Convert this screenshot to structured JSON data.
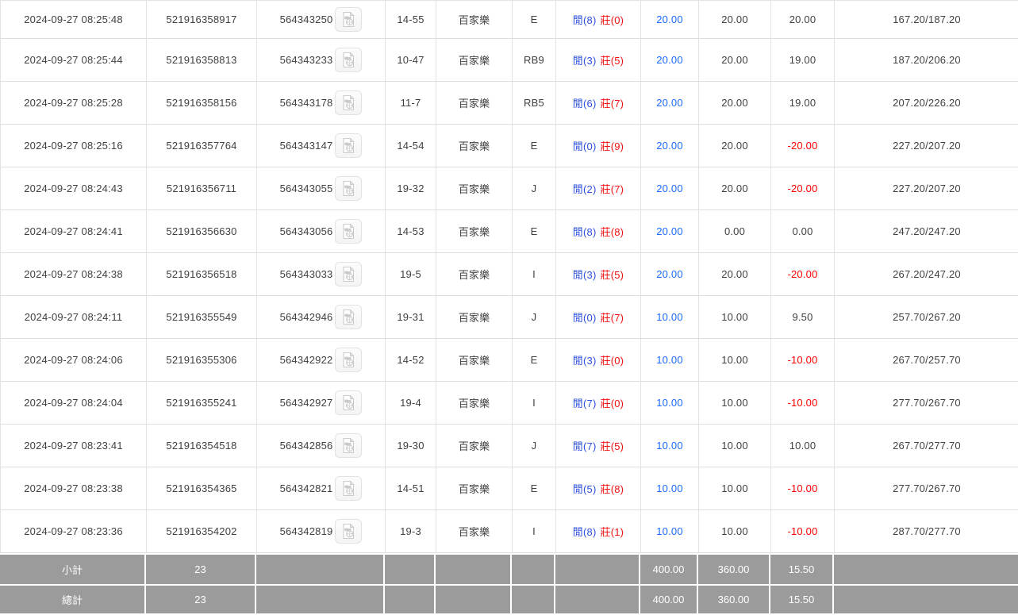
{
  "table": {
    "game_label": "百家樂",
    "rows": [
      {
        "time": "2024-09-27 08:25:48",
        "bet_id": "521916358917",
        "round_id": "564343250",
        "table_round": "14-55",
        "game": "百家樂",
        "code": "E",
        "player": "閒(8)",
        "banker": "莊(0)",
        "bet": "20.00",
        "valid": "20.00",
        "winloss": "20.00",
        "balance": "167.20/187.20"
      },
      {
        "time": "2024-09-27 08:25:44",
        "bet_id": "521916358813",
        "round_id": "564343233",
        "table_round": "10-47",
        "game": "百家樂",
        "code": "RB9",
        "player": "閒(3)",
        "banker": "莊(5)",
        "bet": "20.00",
        "valid": "20.00",
        "winloss": "19.00",
        "balance": "187.20/206.20"
      },
      {
        "time": "2024-09-27 08:25:28",
        "bet_id": "521916358156",
        "round_id": "564343178",
        "table_round": "11-7",
        "game": "百家樂",
        "code": "RB5",
        "player": "閒(6)",
        "banker": "莊(7)",
        "bet": "20.00",
        "valid": "20.00",
        "winloss": "19.00",
        "balance": "207.20/226.20"
      },
      {
        "time": "2024-09-27 08:25:16",
        "bet_id": "521916357764",
        "round_id": "564343147",
        "table_round": "14-54",
        "game": "百家樂",
        "code": "E",
        "player": "閒(0)",
        "banker": "莊(9)",
        "bet": "20.00",
        "valid": "20.00",
        "winloss": "-20.00",
        "balance": "227.20/207.20"
      },
      {
        "time": "2024-09-27 08:24:43",
        "bet_id": "521916356711",
        "round_id": "564343055",
        "table_round": "19-32",
        "game": "百家樂",
        "code": "J",
        "player": "閒(2)",
        "banker": "莊(7)",
        "bet": "20.00",
        "valid": "20.00",
        "winloss": "-20.00",
        "balance": "227.20/207.20"
      },
      {
        "time": "2024-09-27 08:24:41",
        "bet_id": "521916356630",
        "round_id": "564343056",
        "table_round": "14-53",
        "game": "百家樂",
        "code": "E",
        "player": "閒(8)",
        "banker": "莊(8)",
        "bet": "20.00",
        "valid": "0.00",
        "winloss": "0.00",
        "balance": "247.20/247.20"
      },
      {
        "time": "2024-09-27 08:24:38",
        "bet_id": "521916356518",
        "round_id": "564343033",
        "table_round": "19-5",
        "game": "百家樂",
        "code": "I",
        "player": "閒(3)",
        "banker": "莊(5)",
        "bet": "20.00",
        "valid": "20.00",
        "winloss": "-20.00",
        "balance": "267.20/247.20"
      },
      {
        "time": "2024-09-27 08:24:11",
        "bet_id": "521916355549",
        "round_id": "564342946",
        "table_round": "19-31",
        "game": "百家樂",
        "code": "J",
        "player": "閒(0)",
        "banker": "莊(7)",
        "bet": "10.00",
        "valid": "10.00",
        "winloss": "9.50",
        "balance": "257.70/267.20"
      },
      {
        "time": "2024-09-27 08:24:06",
        "bet_id": "521916355306",
        "round_id": "564342922",
        "table_round": "14-52",
        "game": "百家樂",
        "code": "E",
        "player": "閒(3)",
        "banker": "莊(0)",
        "bet": "10.00",
        "valid": "10.00",
        "winloss": "-10.00",
        "balance": "267.70/257.70"
      },
      {
        "time": "2024-09-27 08:24:04",
        "bet_id": "521916355241",
        "round_id": "564342927",
        "table_round": "19-4",
        "game": "百家樂",
        "code": "I",
        "player": "閒(7)",
        "banker": "莊(0)",
        "bet": "10.00",
        "valid": "10.00",
        "winloss": "-10.00",
        "balance": "277.70/267.70"
      },
      {
        "time": "2024-09-27 08:23:41",
        "bet_id": "521916354518",
        "round_id": "564342856",
        "table_round": "19-30",
        "game": "百家樂",
        "code": "J",
        "player": "閒(7)",
        "banker": "莊(5)",
        "bet": "10.00",
        "valid": "10.00",
        "winloss": "10.00",
        "balance": "267.70/277.70"
      },
      {
        "time": "2024-09-27 08:23:38",
        "bet_id": "521916354365",
        "round_id": "564342821",
        "table_round": "14-51",
        "game": "百家樂",
        "code": "E",
        "player": "閒(5)",
        "banker": "莊(8)",
        "bet": "10.00",
        "valid": "10.00",
        "winloss": "-10.00",
        "balance": "277.70/267.70"
      },
      {
        "time": "2024-09-27 08:23:36",
        "bet_id": "521916354202",
        "round_id": "564342819",
        "table_round": "19-3",
        "game": "百家樂",
        "code": "I",
        "player": "閒(8)",
        "banker": "莊(1)",
        "bet": "10.00",
        "valid": "10.00",
        "winloss": "-10.00",
        "balance": "287.70/277.70"
      }
    ]
  },
  "summary": {
    "rows": [
      {
        "label": "小計",
        "count": "23",
        "bet": "400.00",
        "valid": "360.00",
        "winloss": "15.50"
      },
      {
        "label": "總計",
        "count": "23",
        "bet": "400.00",
        "valid": "360.00",
        "winloss": "15.50"
      }
    ]
  },
  "icons": {
    "video": "video-replay-icon"
  },
  "colors": {
    "link_blue": "#1a6aff",
    "player_blue": "#2d4fe0",
    "banker_red": "#ef1010",
    "negative_red": "#ff0000",
    "summary_gray": "#9b9b9b"
  }
}
